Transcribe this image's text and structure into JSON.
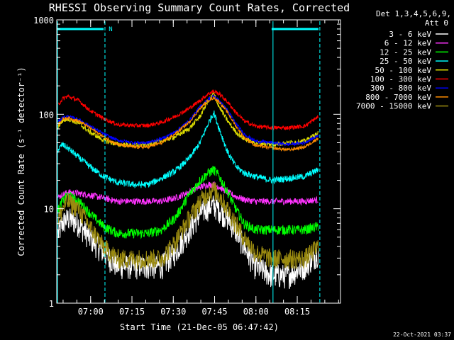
{
  "chart_data": {
    "type": "line",
    "title": "RHESSI Observing Summary Count Rates, Corrected",
    "ylabel": "Corrected Count Rate (s⁻¹ detector⁻¹)",
    "xlabel": "Start Time (21-Dec-05 06:47:42)",
    "y_scale": "log",
    "ylim": [
      1,
      1000
    ],
    "xlim": [
      0,
      103
    ],
    "y_ticks": [
      {
        "value": 1,
        "label": "1"
      },
      {
        "value": 10,
        "label": "10"
      },
      {
        "value": 100,
        "label": "100"
      },
      {
        "value": 1000,
        "label": "1000"
      }
    ],
    "x_ticks": [
      {
        "value": 12.3,
        "label": "07:00"
      },
      {
        "value": 27.3,
        "label": "07:15"
      },
      {
        "value": 42.3,
        "label": "07:30"
      },
      {
        "value": 57.3,
        "label": "07:45"
      },
      {
        "value": 72.3,
        "label": "08:00"
      },
      {
        "value": 87.3,
        "label": "08:15"
      }
    ],
    "legend_header": [
      "Det 1,3,4,5,6,9,",
      "Att 0"
    ],
    "legend_position": "right",
    "flag_bar": {
      "color": "#00ffff",
      "text": "N",
      "segments": [
        [
          0,
          17
        ],
        [
          78,
          95
        ]
      ]
    },
    "vlines": [
      {
        "x": 0,
        "color": "#00ffff",
        "style": "solid"
      },
      {
        "x": 17.5,
        "color": "#00ffff",
        "style": "dashed"
      },
      {
        "x": 78.5,
        "color": "#00ffff",
        "style": "solid"
      },
      {
        "x": 95.5,
        "color": "#00ffff",
        "style": "dashed"
      }
    ],
    "shape_times": [
      0,
      2,
      4,
      8,
      12,
      17,
      22,
      28,
      33,
      38,
      43,
      48,
      52,
      55,
      57,
      59,
      62,
      65,
      68,
      72,
      78,
      84,
      90,
      95
    ],
    "series": [
      {
        "name": "3 - 6 keV",
        "color": "#ffffff",
        "noise": 0.15,
        "values": [
          5,
          7,
          8,
          7,
          5,
          3.5,
          2.5,
          2.5,
          2.5,
          2.5,
          3.5,
          6,
          9,
          10.5,
          11,
          10,
          8,
          6,
          4,
          2.5,
          2,
          2,
          2.5,
          3.5
        ]
      },
      {
        "name": "6 - 12 keV",
        "color": "#ff33ff",
        "noise": 0.04,
        "values": [
          13,
          14,
          15,
          14.5,
          14,
          13,
          12,
          12,
          12,
          12,
          13,
          15,
          17,
          18,
          18,
          17,
          15,
          13.5,
          12.5,
          12,
          12,
          12,
          12,
          12.5
        ]
      },
      {
        "name": "12 - 25 keV",
        "color": "#00ff00",
        "noise": 0.06,
        "values": [
          9,
          12,
          14,
          12,
          9,
          6.5,
          5.5,
          5.5,
          5.5,
          6,
          8,
          14,
          20,
          24,
          26,
          22,
          15,
          10,
          7,
          6,
          6,
          6,
          6,
          6.5
        ]
      },
      {
        "name": "25 - 50 keV",
        "color": "#00ffff",
        "noise": 0.04,
        "values": [
          40,
          48,
          44,
          35,
          28,
          22,
          19,
          18,
          18,
          21,
          25,
          34,
          50,
          80,
          105,
          70,
          40,
          28,
          24,
          22,
          20,
          21,
          22,
          26
        ]
      },
      {
        "name": "50 - 100 keV",
        "color": "#dddd00",
        "noise": 0.03,
        "values": [
          70,
          85,
          90,
          80,
          65,
          53,
          48,
          47,
          48,
          52,
          58,
          70,
          95,
          140,
          165,
          120,
          85,
          65,
          55,
          50,
          48,
          50,
          52,
          63
        ]
      },
      {
        "name": "100 - 300 keV",
        "color": "#ff0000",
        "noise": 0.025,
        "values": [
          120,
          145,
          155,
          140,
          110,
          90,
          78,
          76,
          76,
          82,
          95,
          115,
          140,
          165,
          175,
          165,
          135,
          105,
          85,
          75,
          72,
          72,
          75,
          95
        ]
      },
      {
        "name": "300 - 800 keV",
        "color": "#0000ff",
        "noise": 0.02,
        "values": [
          80,
          92,
          95,
          88,
          75,
          62,
          53,
          50,
          50,
          55,
          65,
          85,
          120,
          145,
          155,
          140,
          110,
          80,
          62,
          52,
          50,
          48,
          50,
          60
        ]
      },
      {
        "name": "800 - 7000 keV",
        "color": "#ff8c00",
        "noise": 0.02,
        "values": [
          75,
          88,
          92,
          85,
          72,
          58,
          48,
          45,
          45,
          50,
          62,
          82,
          115,
          140,
          150,
          135,
          105,
          75,
          57,
          47,
          44,
          42,
          45,
          56
        ]
      },
      {
        "name": "7000 - 15000 keV",
        "color": "#9a8a10",
        "noise": 0.12,
        "values": [
          7,
          10,
          12,
          10,
          6.5,
          4,
          3,
          3,
          3,
          3,
          4.5,
          8,
          12,
          15,
          16,
          14,
          10,
          7,
          5,
          3.5,
          3,
          3,
          3,
          4
        ]
      }
    ]
  },
  "footer": {
    "timestamp": "22-Oct-2021 03:37"
  }
}
